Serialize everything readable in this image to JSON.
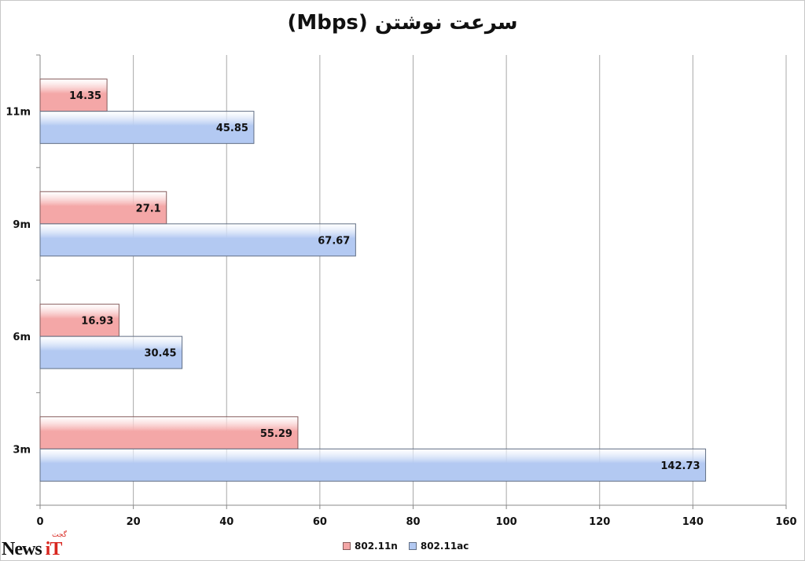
{
  "chart_data": {
    "type": "bar",
    "orientation": "horizontal",
    "title": "سرعت نوشتن (Mbps)",
    "categories": [
      "11m",
      "9m",
      "6m",
      "3m"
    ],
    "series": [
      {
        "name": "802.11n",
        "values": [
          14.35,
          27.1,
          16.93,
          55.29
        ],
        "color": "#f4a7a7"
      },
      {
        "name": "802.11ac",
        "values": [
          45.85,
          67.67,
          30.45,
          142.73
        ],
        "color": "#b3c9f2"
      }
    ],
    "xlim": [
      0,
      160
    ],
    "xticks": [
      0,
      20,
      40,
      60,
      80,
      100,
      120,
      140,
      160
    ],
    "grid": true,
    "legend_position": "bottom"
  },
  "watermark": {
    "text_main": "News ",
    "text_accent": "iT",
    "text_small": "گجت"
  }
}
